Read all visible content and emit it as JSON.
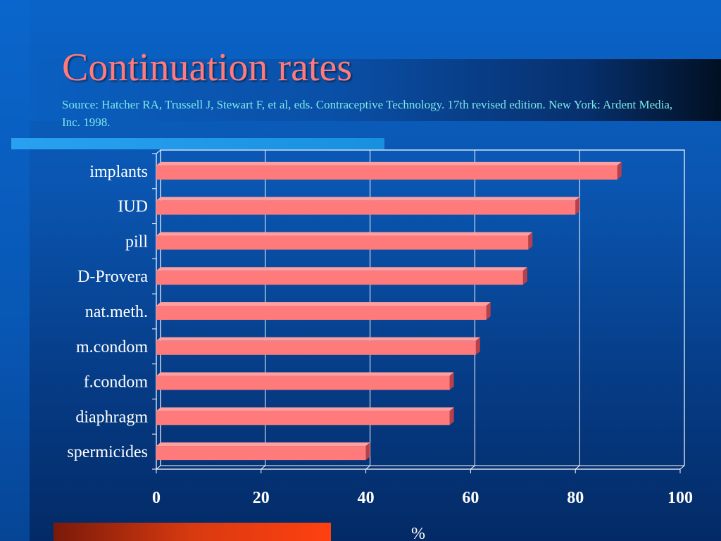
{
  "slide": {
    "title": "Continuation rates",
    "source": "Source: Hatcher RA, Trussell J, Stewart F, et al, eds. Contraceptive Technology. 17th revised edition. New York: Ardent Media, Inc. 1998."
  },
  "colors": {
    "bar_front": "#ff7b7b",
    "bar_top": "#ff9f9f",
    "bar_side": "#b8404a",
    "title": "#ff7a7a",
    "source": "#7de8e8",
    "gridline": "#ffffff"
  },
  "chart_data": {
    "type": "bar",
    "orientation": "horizontal",
    "title": "",
    "xlabel": "%",
    "ylabel": "",
    "categories": [
      "implants",
      "IUD",
      "pill",
      "D-Provera",
      "nat.meth.",
      "m.condom",
      "f.condom",
      "diaphragm",
      "spermicides"
    ],
    "values": [
      88,
      80,
      71,
      70,
      63,
      61,
      56,
      56,
      40
    ],
    "xlim": [
      0,
      100
    ],
    "xticks": [
      "0",
      "20",
      "40",
      "60",
      "80",
      "100"
    ],
    "grid": "vertical",
    "legend": "none",
    "style": "3d"
  }
}
